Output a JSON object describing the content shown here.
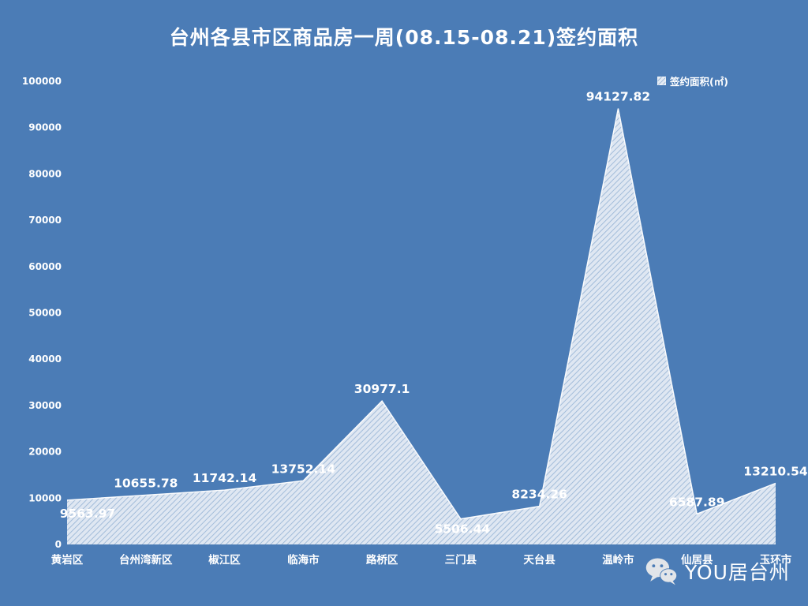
{
  "page": {
    "background": "#4b7cb6"
  },
  "header": {
    "title": "台州各县市区商品房一周(08.15-08.21)签约面积"
  },
  "legend": {
    "label": "签约面积(㎡)"
  },
  "chart_data": {
    "type": "area",
    "title": "台州各县市区商品房一周(08.15-08.21)签约面积",
    "series_name": "签约面积(㎡)",
    "categories": [
      "黄岩区",
      "台州湾新区",
      "椒江区",
      "临海市",
      "路桥区",
      "三门县",
      "天台县",
      "温岭市",
      "仙居县",
      "玉环市"
    ],
    "values": [
      9563.97,
      10655.78,
      11742.14,
      13752.14,
      30977.1,
      5506.44,
      8234.26,
      94127.82,
      6587.89,
      13210.54
    ],
    "value_labels": [
      "9563.97",
      "10655.78",
      "11742.14",
      "13752.14",
      "30977.1",
      "5506.44",
      "8234.26",
      "94127.82",
      "6587.89",
      "13210.54"
    ],
    "ylim": [
      0,
      100000
    ],
    "ytick_step": 10000,
    "ytick_labels": [
      "0",
      "10000",
      "20000",
      "30000",
      "40000",
      "50000",
      "60000",
      "70000",
      "80000",
      "90000",
      "100000"
    ],
    "grid": false,
    "legend_position": "top-right",
    "fill_style": "white-diagonal-hatch",
    "colors": {
      "background": "#4b7cb6",
      "text": "#ffffff",
      "area_fill": "#ffffff",
      "hatch_gap": "#5d8abd"
    }
  },
  "watermark": {
    "icon": "wechat-icon",
    "text": "YOU居台州"
  }
}
